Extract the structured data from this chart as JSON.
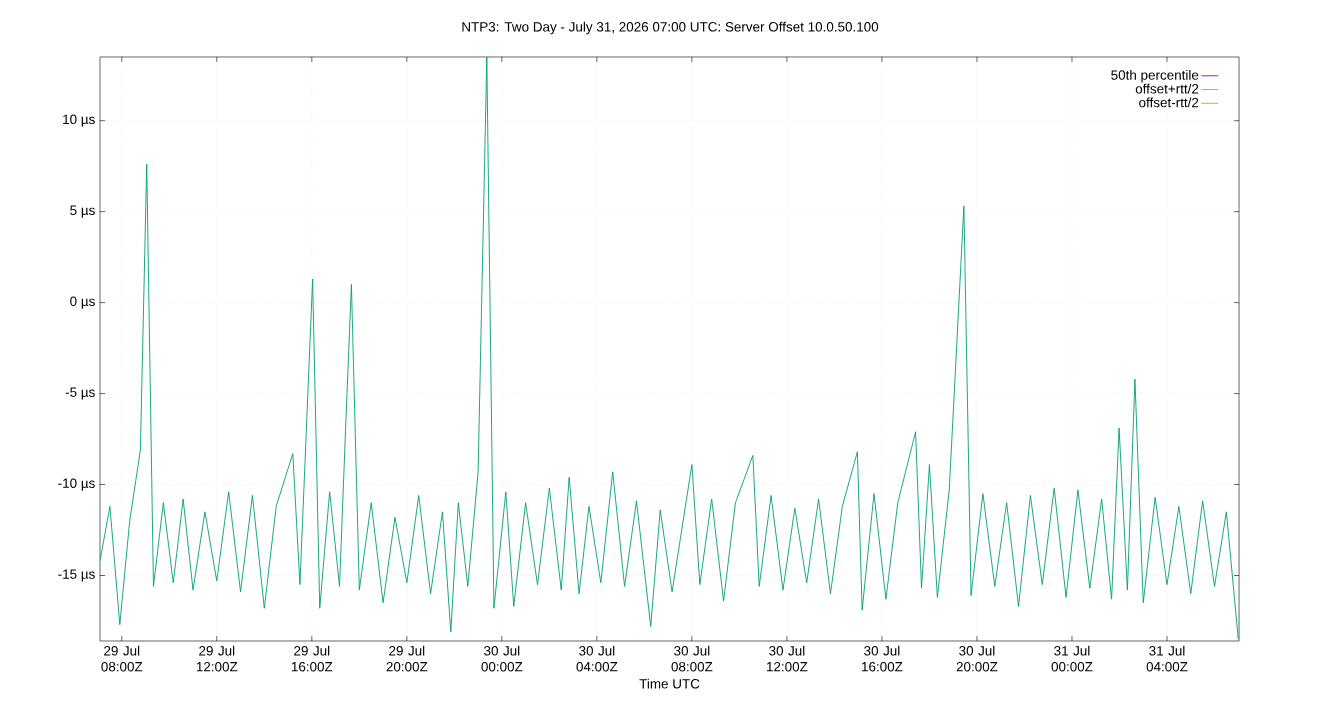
{
  "chart_data": {
    "type": "line",
    "title": "NTP3: Two Day - July 31, 2026 07:00 UTC: Server Offset 10.0.50.100",
    "xlabel": "Time UTC",
    "x": [
      "2026-07-29T07:05",
      "2026-07-29T07:30",
      "2026-07-29T07:55",
      "2026-07-29T08:20",
      "2026-07-29T08:47",
      "2026-07-29T09:03",
      "2026-07-29T09:20",
      "2026-07-29T09:45",
      "2026-07-29T10:10",
      "2026-07-29T10:35",
      "2026-07-29T11:00",
      "2026-07-29T11:30",
      "2026-07-29T12:00",
      "2026-07-29T12:30",
      "2026-07-29T13:00",
      "2026-07-29T13:30",
      "2026-07-29T14:00",
      "2026-07-29T14:30",
      "2026-07-29T15:12",
      "2026-07-29T15:30",
      "2026-07-29T16:02",
      "2026-07-29T16:20",
      "2026-07-29T16:45",
      "2026-07-29T17:10",
      "2026-07-29T17:25",
      "2026-07-29T17:40",
      "2026-07-29T18:00",
      "2026-07-29T18:30",
      "2026-07-29T19:00",
      "2026-07-29T19:30",
      "2026-07-29T20:00",
      "2026-07-29T20:30",
      "2026-07-29T21:00",
      "2026-07-29T21:30",
      "2026-07-29T21:51",
      "2026-07-29T22:10",
      "2026-07-29T22:34",
      "2026-07-29T23:00",
      "2026-07-29T23:22",
      "2026-07-29T23:40",
      "2026-07-30T00:10",
      "2026-07-30T00:30",
      "2026-07-30T01:00",
      "2026-07-30T01:30",
      "2026-07-30T02:00",
      "2026-07-30T02:30",
      "2026-07-30T02:50",
      "2026-07-30T03:15",
      "2026-07-30T03:40",
      "2026-07-30T04:10",
      "2026-07-30T04:40",
      "2026-07-30T05:10",
      "2026-07-30T05:40",
      "2026-07-30T06:16",
      "2026-07-30T06:40",
      "2026-07-30T07:10",
      "2026-07-30T08:00",
      "2026-07-30T08:20",
      "2026-07-30T08:50",
      "2026-07-30T09:20",
      "2026-07-30T09:50",
      "2026-07-30T10:34",
      "2026-07-30T10:50",
      "2026-07-30T11:20",
      "2026-07-30T11:50",
      "2026-07-30T12:20",
      "2026-07-30T12:50",
      "2026-07-30T13:20",
      "2026-07-30T13:50",
      "2026-07-30T14:20",
      "2026-07-30T14:58",
      "2026-07-30T15:10",
      "2026-07-30T15:40",
      "2026-07-30T16:10",
      "2026-07-30T16:40",
      "2026-07-30T17:25",
      "2026-07-30T17:40",
      "2026-07-30T18:00",
      "2026-07-30T18:20",
      "2026-07-30T18:50",
      "2026-07-30T19:27",
      "2026-07-30T19:45",
      "2026-07-30T20:15",
      "2026-07-30T20:45",
      "2026-07-30T21:15",
      "2026-07-30T21:45",
      "2026-07-30T22:15",
      "2026-07-30T22:45",
      "2026-07-30T23:15",
      "2026-07-30T23:45",
      "2026-07-31T00:15",
      "2026-07-31T00:45",
      "2026-07-31T01:15",
      "2026-07-31T01:40",
      "2026-07-31T01:59",
      "2026-07-31T02:20",
      "2026-07-31T02:39",
      "2026-07-31T03:00",
      "2026-07-31T03:30",
      "2026-07-31T04:00",
      "2026-07-31T04:30",
      "2026-07-31T05:00",
      "2026-07-31T05:30",
      "2026-07-31T06:00",
      "2026-07-31T06:30",
      "2026-07-31T07:00"
    ],
    "series": [
      {
        "name": "50th percentile",
        "color": "#9400d3",
        "values": [
          null,
          null,
          null,
          null,
          null,
          null,
          null,
          null,
          null,
          null,
          null,
          null,
          null,
          null,
          null,
          null,
          null,
          null,
          null,
          null,
          null,
          null,
          null,
          null,
          null,
          null,
          null,
          null,
          null,
          null,
          null,
          null,
          null,
          null,
          null,
          null,
          null,
          null,
          null,
          null,
          null,
          null,
          null,
          null,
          null,
          null,
          null,
          null,
          null,
          null,
          null,
          null,
          null,
          null,
          null,
          null,
          null,
          null,
          null,
          null,
          null,
          null,
          null,
          null,
          null,
          null,
          null,
          null,
          null,
          null,
          null,
          null,
          null,
          null,
          null,
          null,
          null,
          null,
          null,
          null,
          null,
          null,
          null,
          null,
          null,
          null,
          null,
          null,
          null,
          null,
          null,
          null,
          null,
          null,
          null,
          null,
          null,
          null,
          null,
          null,
          null,
          null,
          null,
          null,
          null,
          null
        ]
      },
      {
        "color": "#009e73",
        "values": [
          -14.2,
          -11.2,
          -17.7,
          -12.0,
          -8.1,
          7.6,
          -15.6,
          -11.0,
          -15.4,
          -10.8,
          -15.8,
          -11.5,
          -15.3,
          -10.4,
          -15.9,
          -10.6,
          -16.8,
          -11.2,
          -8.3,
          -15.5,
          1.3,
          -16.8,
          -10.4,
          -15.6,
          -7.1,
          1.0,
          -15.8,
          -11.0,
          -16.5,
          -11.8,
          -15.4,
          -10.6,
          -16.0,
          -11.5,
          -18.1,
          -11.0,
          -15.6,
          -9.3,
          13.5,
          -16.8,
          -10.4,
          -16.7,
          -11.0,
          -15.5,
          -10.2,
          -15.8,
          -9.6,
          -16.0,
          -11.2,
          -15.4,
          -9.3,
          -15.6,
          -10.9,
          -17.8,
          -11.4,
          -15.9,
          -8.9,
          -15.5,
          -10.8,
          -16.4,
          -11.0,
          -8.4,
          -15.6,
          -10.6,
          -15.8,
          -11.3,
          -15.4,
          -10.8,
          -16.0,
          -11.2,
          -8.2,
          -16.9,
          -10.5,
          -16.3,
          -11.0,
          -7.1,
          -15.7,
          -8.9,
          -16.2,
          -10.3,
          5.3,
          -16.1,
          -10.5,
          -15.6,
          -11.0,
          -16.7,
          -10.6,
          -15.5,
          -10.2,
          -16.2,
          -10.3,
          -15.7,
          -10.8,
          -16.3,
          -6.9,
          -15.8,
          -4.2,
          -16.5,
          -10.7,
          -15.5,
          -11.2,
          -16.0,
          -10.9,
          -15.6,
          -11.5,
          -18.5
        ]
      },
      {
        "name": "offset+rtt/2",
        "color": "#56b4e9",
        "values": [
          null,
          null,
          null,
          null,
          null,
          null,
          null,
          null,
          null,
          null,
          null,
          null,
          null,
          null,
          null,
          null,
          null,
          null,
          null,
          null,
          null,
          null,
          null,
          null,
          null,
          null,
          null,
          null,
          null,
          null,
          null,
          null,
          null,
          null,
          null,
          null,
          null,
          null,
          null,
          null,
          null,
          null,
          null,
          null,
          null,
          null,
          null,
          null,
          null,
          null,
          null,
          null,
          null,
          null,
          null,
          null,
          null,
          null,
          null,
          null,
          null,
          null,
          null,
          null,
          null,
          null,
          null,
          null,
          null,
          null,
          null,
          null,
          null,
          null,
          null,
          null,
          null,
          null,
          null,
          null,
          null,
          null,
          null,
          null,
          null,
          null,
          null,
          null,
          null,
          null,
          null,
          null,
          null,
          null,
          null,
          null,
          null,
          null,
          null,
          null,
          null,
          null,
          null,
          null,
          null,
          null
        ]
      },
      {
        "name": "offset-rtt/2",
        "color": "#e69f00",
        "values": [
          null,
          null,
          null,
          null,
          null,
          null,
          null,
          null,
          null,
          null,
          null,
          null,
          null,
          null,
          null,
          null,
          null,
          null,
          null,
          null,
          null,
          null,
          null,
          null,
          null,
          null,
          null,
          null,
          null,
          null,
          null,
          null,
          null,
          null,
          null,
          null,
          null,
          null,
          null,
          null,
          null,
          null,
          null,
          null,
          null,
          null,
          null,
          null,
          null,
          null,
          null,
          null,
          null,
          null,
          null,
          null,
          null,
          null,
          null,
          null,
          null,
          null,
          null,
          null,
          null,
          null,
          null,
          null,
          null,
          null,
          null,
          null,
          null,
          null,
          null,
          null,
          null,
          null,
          null,
          null,
          null,
          null,
          null,
          null,
          null,
          null,
          null,
          null,
          null,
          null,
          null,
          null,
          null,
          null,
          null,
          null,
          null,
          null,
          null,
          null,
          null,
          null,
          null,
          null,
          null,
          null
        ]
      }
    ],
    "xlim": [
      "2026-07-29T07:05",
      "2026-07-31T07:02"
    ],
    "xticks": [
      {
        "value": "2026-07-29T08:00",
        "label": "29 Jul 08:00Z"
      },
      {
        "value": "2026-07-29T12:00",
        "label": "29 Jul 12:00Z"
      },
      {
        "value": "2026-07-29T16:00",
        "label": "29 Jul 16:00Z"
      },
      {
        "value": "2026-07-29T20:00",
        "label": "29 Jul 20:00Z"
      },
      {
        "value": "2026-07-30T00:00",
        "label": "30 Jul 00:00Z"
      },
      {
        "value": "2026-07-30T04:00",
        "label": "30 Jul 04:00Z"
      },
      {
        "value": "2026-07-30T08:00",
        "label": "30 Jul 08:00Z"
      },
      {
        "value": "2026-07-30T12:00",
        "label": "30 Jul 12:00Z"
      },
      {
        "value": "2026-07-30T16:00",
        "label": "30 Jul 16:00Z"
      },
      {
        "value": "2026-07-30T20:00",
        "label": "30 Jul 20:00Z"
      },
      {
        "value": "2026-07-31T00:00",
        "label": "31 Jul 00:00Z"
      },
      {
        "value": "2026-07-31T04:00",
        "label": "31 Jul 04:00Z"
      }
    ],
    "ylim": [
      -18.6,
      13.5
    ],
    "yticks": [
      {
        "value": -15,
        "label": "-15 µs"
      },
      {
        "value": -10,
        "label": "-10 µs"
      },
      {
        "value": -5,
        "label": "-5 µs"
      },
      {
        "value": 0,
        "label": "0 µs"
      },
      {
        "value": 5,
        "label": "5 µs"
      },
      {
        "value": 10,
        "label": "10 µs"
      }
    ],
    "grid": true,
    "legend": "top right",
    "marker": "none",
    "line_style": "solid"
  }
}
